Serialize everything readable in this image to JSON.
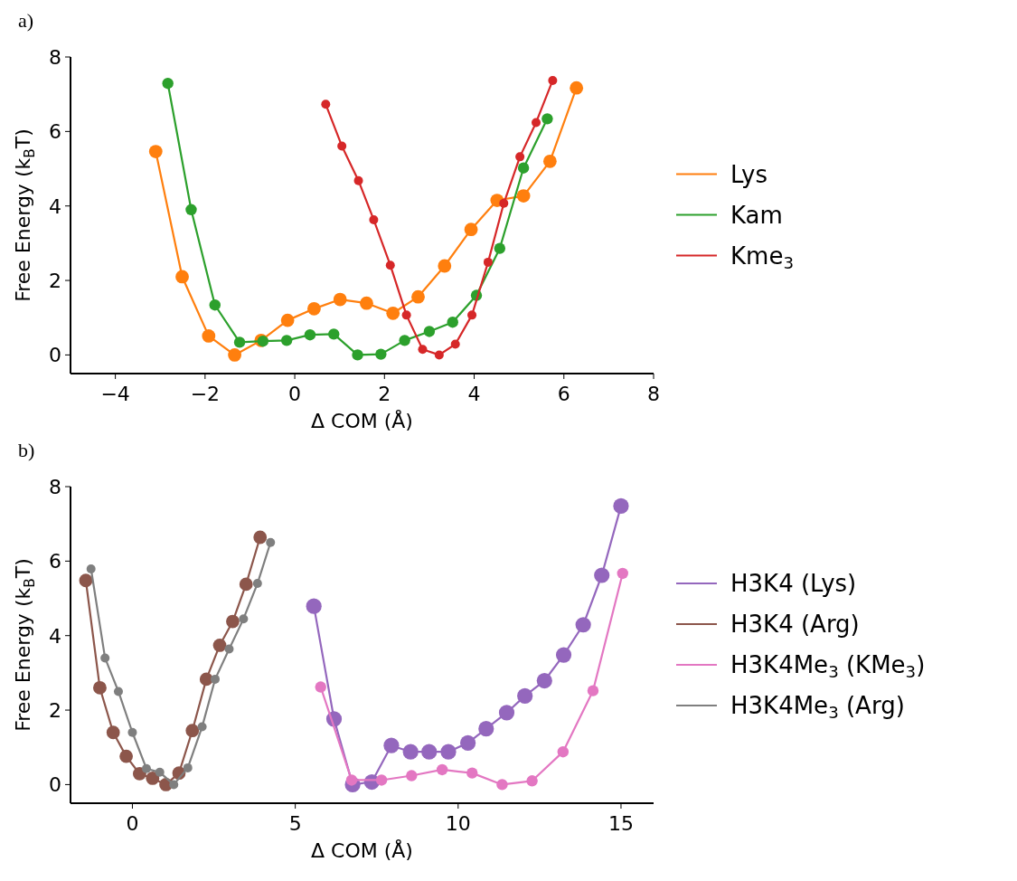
{
  "chart_data": [
    {
      "type": "line",
      "title": "a)",
      "xlabel": "Δ COM (Å)",
      "ylabel": "Free Energy (k$_{B}$T)",
      "xlim": [
        -5,
        8
      ],
      "xticks": [
        -4,
        -2,
        0,
        2,
        4,
        6,
        8
      ],
      "ylim": [
        -0.5,
        8
      ],
      "yticks": [
        0,
        2,
        4,
        6,
        8
      ],
      "legend": "right",
      "marker": "circle",
      "grid": false,
      "series": [
        {
          "name": "Lys",
          "color": "#ff7f0e",
          "x": [
            -3.1,
            -2.51,
            -1.92,
            -1.34,
            -0.75,
            -0.16,
            0.43,
            1.01,
            1.6,
            2.19,
            2.75,
            3.34,
            3.93,
            4.51,
            5.1,
            5.69,
            6.28
          ],
          "values": [
            5.46,
            2.1,
            0.51,
            0,
            0.39,
            0.93,
            1.24,
            1.49,
            1.39,
            1.12,
            1.56,
            2.39,
            3.37,
            4.15,
            4.27,
            5.2,
            7.17
          ]
        },
        {
          "name": "Kam",
          "color": "#2ca02c",
          "x": [
            -2.83,
            -2.31,
            -1.78,
            -1.23,
            -0.71,
            -0.18,
            0.34,
            0.87,
            1.4,
            1.92,
            2.45,
            3.0,
            3.52,
            4.05,
            4.57,
            5.1,
            5.63
          ],
          "values": [
            7.29,
            3.9,
            1.34,
            0.34,
            0.37,
            0.39,
            0.54,
            0.56,
            0,
            0.02,
            0.39,
            0.63,
            0.88,
            1.6,
            2.86,
            5.02,
            6.34
          ]
        },
        {
          "name": "Kme$_{3}$",
          "color": "#d62728",
          "x": [
            0.69,
            1.05,
            1.42,
            1.76,
            2.13,
            2.49,
            2.85,
            3.22,
            3.58,
            3.95,
            4.31,
            4.66,
            5.02,
            5.38,
            5.75
          ],
          "values": [
            6.73,
            5.61,
            4.68,
            3.63,
            2.41,
            1.07,
            0.15,
            0,
            0.29,
            1.07,
            2.49,
            4.07,
            5.32,
            6.24,
            7.37
          ]
        }
      ]
    },
    {
      "type": "line",
      "title": "b)",
      "xlabel": "Δ COM (Å)",
      "ylabel": "Free Energy (k$_{B}$T)",
      "xlim": [
        -1.9,
        16
      ],
      "xticks": [
        0,
        5,
        10,
        15
      ],
      "ylim": [
        -0.5,
        8
      ],
      "yticks": [
        0,
        2,
        4,
        6,
        8
      ],
      "legend": "right",
      "marker": "circle",
      "grid": false,
      "series": [
        {
          "name": "H3K4 (Lys)",
          "color": "#9467bd",
          "x": [
            5.57,
            6.19,
            6.76,
            7.35,
            7.95,
            8.54,
            9.11,
            9.7,
            10.3,
            10.86,
            11.49,
            12.05,
            12.65,
            13.24,
            13.84,
            14.41,
            15.0
          ],
          "values": [
            4.79,
            1.76,
            0,
            0.07,
            1.05,
            0.88,
            0.88,
            0.88,
            1.12,
            1.5,
            1.93,
            2.38,
            2.79,
            3.48,
            4.29,
            5.62,
            7.48
          ]
        },
        {
          "name": "H3K4 (Arg)",
          "color": "#8c564b",
          "x": [
            -1.43,
            -1.0,
            -0.59,
            -0.19,
            0.22,
            0.62,
            1.03,
            1.43,
            1.84,
            2.27,
            2.68,
            3.08,
            3.49,
            3.92
          ],
          "values": [
            5.48,
            2.6,
            1.4,
            0.76,
            0.29,
            0.17,
            0,
            0.31,
            1.45,
            2.83,
            3.74,
            4.38,
            5.38,
            6.64
          ]
        },
        {
          "name": "H3K4Me$_{3}$ (KMe$_{3}$)",
          "color": "#e377c2",
          "x": [
            5.78,
            6.73,
            7.65,
            8.57,
            9.51,
            10.43,
            11.35,
            12.27,
            13.22,
            14.14,
            15.05
          ],
          "values": [
            2.62,
            0.12,
            0.12,
            0.24,
            0.4,
            0.31,
            0,
            0.1,
            0.88,
            2.52,
            5.67
          ]
        },
        {
          "name": "H3K4Me$_{3}$ (Arg)",
          "color": "#7f7f7f",
          "x": [
            -1.27,
            -0.84,
            -0.43,
            0.0,
            0.43,
            0.84,
            1.27,
            1.7,
            2.14,
            2.54,
            2.97,
            3.41,
            3.84,
            4.24
          ],
          "values": [
            5.79,
            3.4,
            2.5,
            1.4,
            0.43,
            0.33,
            0,
            0.45,
            1.55,
            2.83,
            3.64,
            4.45,
            5.4,
            6.5
          ]
        }
      ]
    }
  ]
}
